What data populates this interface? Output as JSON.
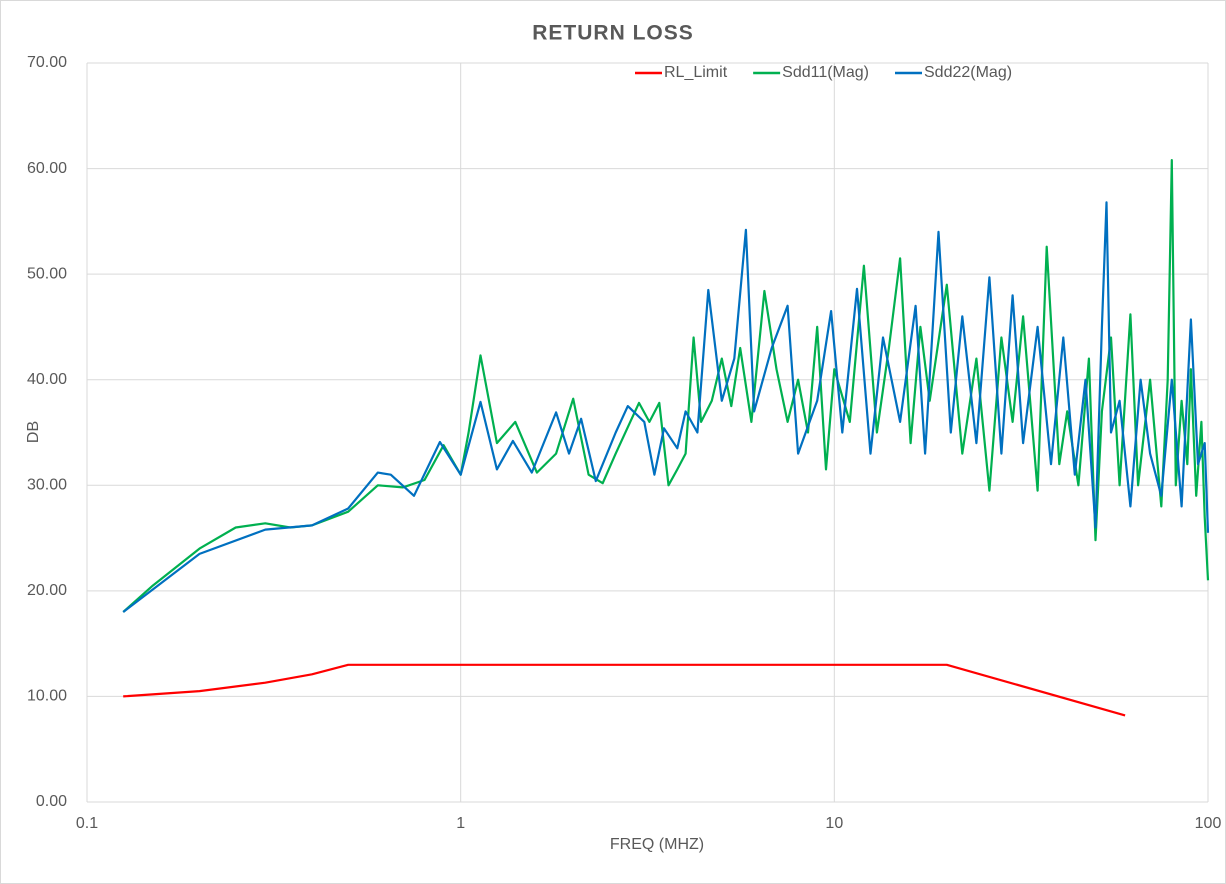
{
  "chart_data": {
    "type": "line",
    "title": "RETURN LOSS",
    "xlabel": "FREQ (MHZ)",
    "ylabel": "DB",
    "xscale": "log",
    "xlim": [
      0.1,
      100
    ],
    "xticks": [
      0.1,
      1,
      10,
      100
    ],
    "ylim": [
      0,
      70
    ],
    "yticks": [
      {
        "value": 0,
        "label": "0.00"
      },
      {
        "value": 10,
        "label": "10.00"
      },
      {
        "value": 20,
        "label": "20.00"
      },
      {
        "value": 30,
        "label": "30.00"
      },
      {
        "value": 40,
        "label": "40.00"
      },
      {
        "value": 50,
        "label": "50.00"
      },
      {
        "value": 60,
        "label": "60.00"
      },
      {
        "value": 70,
        "label": "70.00"
      }
    ],
    "grid": true,
    "legend": "top",
    "series": [
      {
        "name": "RL_Limit",
        "color": "#ff0000",
        "x": [
          0.125,
          0.2,
          0.3,
          0.4,
          0.5,
          0.6,
          1,
          20,
          60
        ],
        "values": [
          10,
          10.5,
          11.3,
          12.1,
          13,
          13,
          13,
          13,
          8.2
        ]
      },
      {
        "name": "Sdd11(Mag)",
        "color": "#00b050",
        "x": [
          0.125,
          0.15,
          0.2,
          0.25,
          0.3,
          0.35,
          0.4,
          0.5,
          0.6,
          0.7,
          0.8,
          0.9,
          1.0,
          1.05,
          1.13,
          1.25,
          1.4,
          1.6,
          1.8,
          2.0,
          2.2,
          2.4,
          2.6,
          2.8,
          3.0,
          3.2,
          3.4,
          3.6,
          3.8,
          4.0,
          4.2,
          4.4,
          4.7,
          5.0,
          5.3,
          5.6,
          6.0,
          6.5,
          7.0,
          7.5,
          8.0,
          8.5,
          9.0,
          9.5,
          10,
          11,
          12,
          13,
          14,
          15,
          16,
          17,
          18,
          20,
          22,
          24,
          26,
          28,
          30,
          32,
          35,
          37,
          40,
          42,
          45,
          48,
          50,
          52,
          55,
          58,
          62,
          65,
          70,
          75,
          78,
          80,
          82,
          85,
          88,
          90,
          93,
          96,
          98,
          100
        ],
        "values": [
          18,
          20.5,
          24,
          26,
          26.4,
          26,
          26.2,
          27.5,
          30,
          29.8,
          30.5,
          33.8,
          31,
          35,
          42.3,
          34,
          36,
          31.2,
          33,
          38.2,
          31,
          30.2,
          33,
          35.5,
          37.8,
          36,
          37.8,
          30,
          31.5,
          33,
          44,
          36,
          38,
          42,
          37.5,
          43,
          36,
          48.4,
          41,
          36,
          40,
          35,
          45,
          31.5,
          41,
          36,
          50.8,
          35,
          43,
          51.5,
          34,
          45,
          38,
          49,
          33,
          42,
          29.5,
          44,
          36,
          46,
          29.5,
          52.6,
          32,
          37,
          30,
          42,
          24.8,
          37,
          44,
          30,
          46.2,
          30,
          40,
          28,
          40,
          60.8,
          30,
          38,
          32,
          41,
          29,
          36,
          27,
          21
        ]
      },
      {
        "name": "Sdd22(Mag)",
        "color": "#0070c0",
        "x": [
          0.125,
          0.2,
          0.3,
          0.4,
          0.5,
          0.6,
          0.65,
          0.75,
          0.88,
          1.0,
          1.13,
          1.25,
          1.38,
          1.55,
          1.8,
          1.95,
          2.1,
          2.3,
          2.6,
          2.8,
          3.1,
          3.3,
          3.5,
          3.8,
          4.0,
          4.3,
          4.6,
          5.0,
          5.4,
          5.8,
          6.1,
          6.8,
          7.5,
          8.0,
          9.0,
          9.8,
          10.5,
          11.5,
          12.5,
          13.5,
          15,
          16.5,
          17.5,
          19,
          20.5,
          22,
          24,
          26,
          28,
          30,
          32,
          35,
          38,
          41,
          44,
          47,
          50,
          52,
          53.5,
          55,
          58,
          62,
          66,
          70,
          75,
          80,
          85,
          90,
          94,
          98,
          100
        ],
        "values": [
          18,
          23.5,
          25.8,
          26.2,
          27.8,
          31.2,
          31,
          29,
          34.1,
          31,
          37.9,
          31.5,
          34.2,
          31.2,
          36.9,
          33,
          36.3,
          30.4,
          35,
          37.5,
          36,
          31,
          35.4,
          33.5,
          37,
          35,
          48.5,
          38,
          42,
          54.2,
          37,
          43,
          47,
          33,
          38,
          46.5,
          35,
          48.6,
          33,
          44,
          36,
          47,
          33,
          54,
          35,
          46,
          34,
          49.7,
          33,
          48,
          34,
          45,
          32,
          44,
          31,
          40,
          26,
          45,
          56.8,
          35,
          38,
          28,
          40,
          33,
          29,
          40,
          28,
          45.7,
          32,
          34,
          25.5
        ]
      }
    ]
  }
}
